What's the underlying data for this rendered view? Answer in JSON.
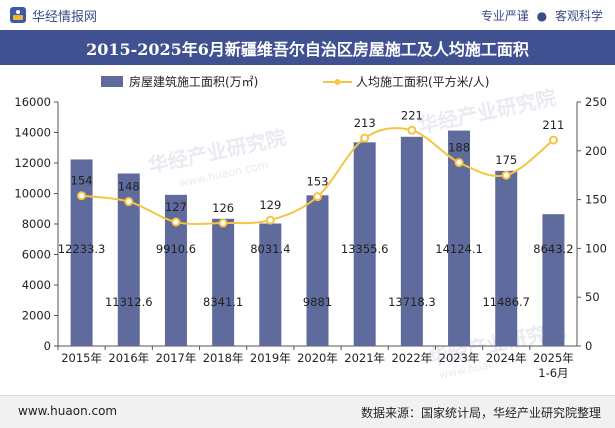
{
  "header": {
    "brand": "华经情报网",
    "tag_left": "专业严谨",
    "tag_sep": "●",
    "tag_right": "客观科学"
  },
  "footer": {
    "site": "www.huaon.com",
    "source": "数据来源：国家统计局，华经产业研究院整理"
  },
  "watermark": {
    "text": "华经产业研究院",
    "url": "www.huaon.com"
  },
  "colors": {
    "bar": "#5f6b9d",
    "line": "#f5c542",
    "title_bg": "#3f5190"
  },
  "chart_data": {
    "type": "bar",
    "title": "2015-2025年6月新疆维吾尔自治区房屋施工及人均施工面积",
    "categories": [
      "2015年",
      "2016年",
      "2017年",
      "2018年",
      "2019年",
      "2020年",
      "2021年",
      "2022年",
      "2023年",
      "2024年",
      "2025年\n1-6月"
    ],
    "series": [
      {
        "name": "房屋建筑施工面积(万㎡)",
        "type": "bar",
        "axis": "left",
        "values": [
          12233.3,
          11312.6,
          9910.6,
          8341.1,
          8031.4,
          9881,
          13355.6,
          13718.3,
          14124.1,
          11486.7,
          8643.2
        ],
        "labels": [
          "12233.3",
          "11312.6",
          "9910.6",
          "8341.1",
          "8031.4",
          "9881",
          "13355.6",
          "13718.3",
          "14124.1",
          "11486.7",
          "8643.2"
        ]
      },
      {
        "name": "人均施工面积(平方米/人)",
        "type": "line",
        "axis": "right",
        "values": [
          154,
          148,
          127,
          126,
          129,
          153,
          213,
          221,
          188,
          175,
          211
        ],
        "labels": [
          "154",
          "148",
          "127",
          "126",
          "129",
          "153",
          "213",
          "221",
          "188",
          "175",
          "211"
        ]
      }
    ],
    "y_left": {
      "min": 0,
      "max": 16000,
      "ticks": [
        "0",
        "2000",
        "4000",
        "6000",
        "8000",
        "10000",
        "12000",
        "14000",
        "16000"
      ]
    },
    "y_right": {
      "min": 0,
      "max": 250,
      "ticks": [
        "0",
        "50",
        "100",
        "150",
        "200",
        "250"
      ]
    },
    "legend_position": "top-center"
  }
}
